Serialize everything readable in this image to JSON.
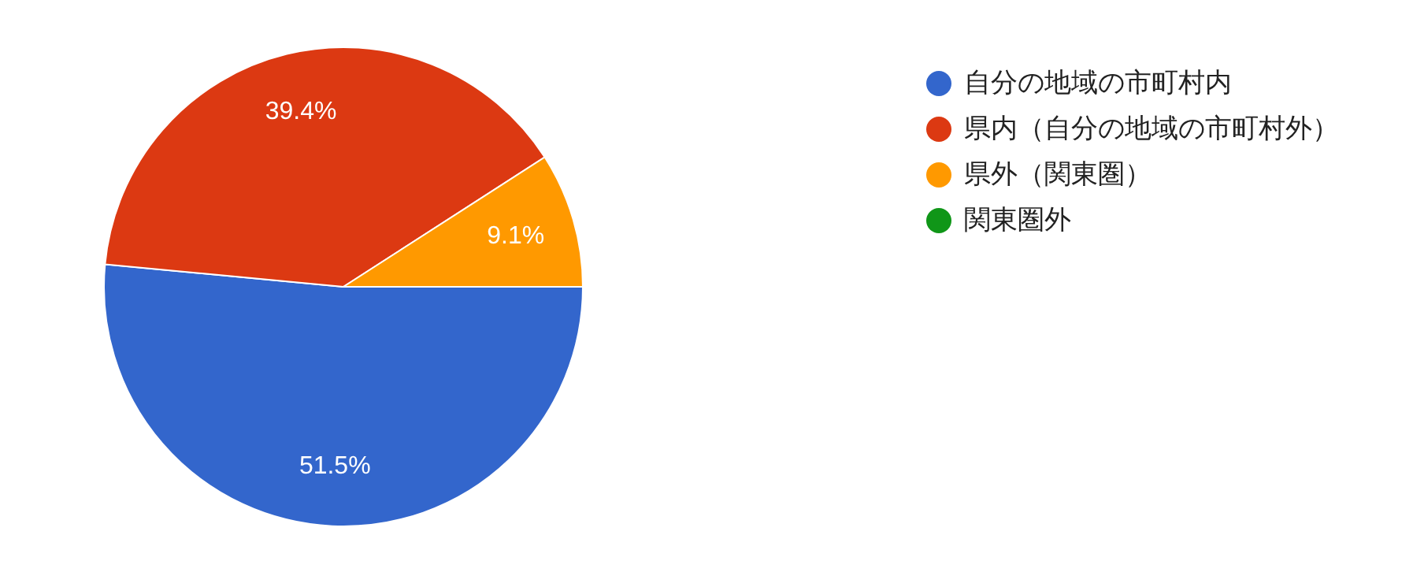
{
  "chart_data": {
    "type": "pie",
    "categories": [
      "自分の地域の市町村内",
      "県内（自分の地域の市町村外）",
      "県外（関東圏）",
      "関東圏外"
    ],
    "values": [
      51.5,
      39.4,
      9.1,
      0
    ],
    "colors": [
      "#3366cc",
      "#dc3912",
      "#ff9900",
      "#109618"
    ],
    "value_labels": [
      "51.5%",
      "39.4%",
      "9.1%",
      null
    ],
    "legend": "right"
  }
}
